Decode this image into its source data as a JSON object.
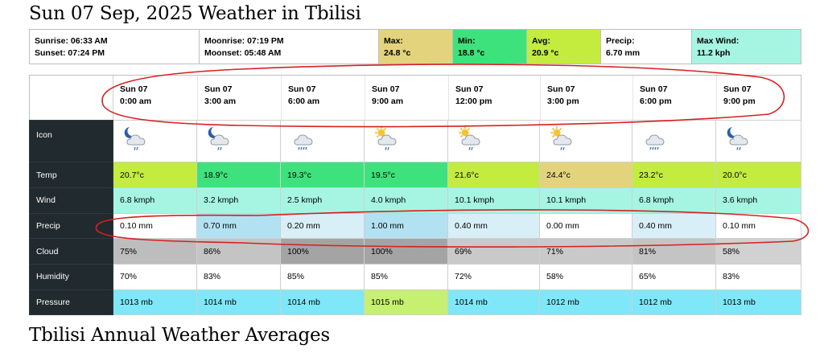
{
  "page": {
    "title": "Sun 07 Sep, 2025 Weather in Tbilisi",
    "section_title": "Tbilisi Annual Weather Averages"
  },
  "summary": {
    "sunrise": "Sunrise: 06:33 AM",
    "sunset": "Sunset: 07:24 PM",
    "moonrise": "Moonrise: 07:19 PM",
    "moonset": "Moonset: 05:48 AM",
    "max_label": "Max:",
    "max_value": "24.8 °c",
    "min_label": "Min:",
    "min_value": "18.8 °c",
    "avg_label": "Avg:",
    "avg_value": "20.9 °c",
    "precip_label": "Precip:",
    "precip_value": "6.70 mm",
    "wind_label": "Max Wind:",
    "wind_value": "11.2 kph"
  },
  "times": [
    {
      "day": "Sun 07",
      "time": "0:00 am"
    },
    {
      "day": "Sun 07",
      "time": "3:00 am"
    },
    {
      "day": "Sun 07",
      "time": "6:00 am"
    },
    {
      "day": "Sun 07",
      "time": "9:00 am"
    },
    {
      "day": "Sun 07",
      "time": "12:00 pm"
    },
    {
      "day": "Sun 07",
      "time": "3:00 pm"
    },
    {
      "day": "Sun 07",
      "time": "6:00 pm"
    },
    {
      "day": "Sun 07",
      "time": "9:00 pm"
    }
  ],
  "rows": {
    "icon": {
      "label": "Icon",
      "values": [
        "moon-cloud-rain-icon",
        "moon-cloud-rain-icon",
        "cloud-drizzle-icon",
        "sun-cloud-rain-icon",
        "sun-cloud-rain-icon",
        "sun-cloud-rain-icon",
        "cloud-drizzle-icon",
        "moon-cloud-rain-icon"
      ]
    },
    "temp": {
      "label": "Temp",
      "values": [
        "20.7°c",
        "18.9°c",
        "19.3°c",
        "19.5°c",
        "21.6°c",
        "24.4°c",
        "23.2°c",
        "20.0°c"
      ]
    },
    "wind": {
      "label": "Wind",
      "values": [
        "6.8 kmph",
        "3.2 kmph",
        "2.5 kmph",
        "4.0 kmph",
        "10.1 kmph",
        "10.1 kmph",
        "6.8 kmph",
        "3.6 kmph"
      ]
    },
    "precip": {
      "label": "Precip",
      "values": [
        "0.10 mm",
        "0.70 mm",
        "0.20 mm",
        "1.00 mm",
        "0.40 mm",
        "0.00 mm",
        "0.40 mm",
        "0.10 mm"
      ]
    },
    "cloud": {
      "label": "Cloud",
      "values": [
        "75%",
        "86%",
        "100%",
        "100%",
        "69%",
        "71%",
        "81%",
        "58%"
      ]
    },
    "humidity": {
      "label": "Humidity",
      "values": [
        "70%",
        "83%",
        "85%",
        "85%",
        "72%",
        "58%",
        "65%",
        "83%"
      ]
    },
    "pressure": {
      "label": "Pressure",
      "values": [
        "1013 mb",
        "1014 mb",
        "1014 mb",
        "1015 mb",
        "1014 mb",
        "1012 mb",
        "1012 mb",
        "1013 mb"
      ]
    }
  },
  "colors": {
    "max": "#e3d37c",
    "min": "#3ee27c",
    "avg": "#c3ec3f",
    "precip": [
      "#ffffff",
      "#b2e2f2",
      "#d8eff8",
      "#b2e2f2",
      "#d8eff8",
      "#ffffff",
      "#d8eff8",
      "#ffffff"
    ],
    "maxwind": "#a6f5e3",
    "label_bg": "#212a2e",
    "temp": [
      "#c3ec3f",
      "#3ee27c",
      "#3ee27c",
      "#3ee27c",
      "#c3ec3f",
      "#e3d37c",
      "#c3ec3f",
      "#c3ec3f"
    ],
    "wind": [
      "#a6f5e3",
      "#a6f5e3",
      "#a6f5e3",
      "#a6f5e3",
      "#a6f5e3",
      "#a6f5e3",
      "#a6f5e3",
      "#a6f5e3"
    ],
    "cloud": [
      "#bdbdbd",
      "#c4c4c4",
      "#a4a4a4",
      "#a4a4a4",
      "#c9c9c9",
      "#c9c9c9",
      "#c4c4c4",
      "#d1d1d1"
    ],
    "humidity": [
      "#ffffff",
      "#ffffff",
      "#ffffff",
      "#ffffff",
      "#ffffff",
      "#ffffff",
      "#ffffff",
      "#ffffff"
    ],
    "pressure": [
      "#7ee8f8",
      "#7ee8f8",
      "#7ee8f8",
      "#c6f070",
      "#7ee8f8",
      "#7ee8f8",
      "#7ee8f8",
      "#7ee8f8"
    ],
    "annotation": "#d62020"
  }
}
